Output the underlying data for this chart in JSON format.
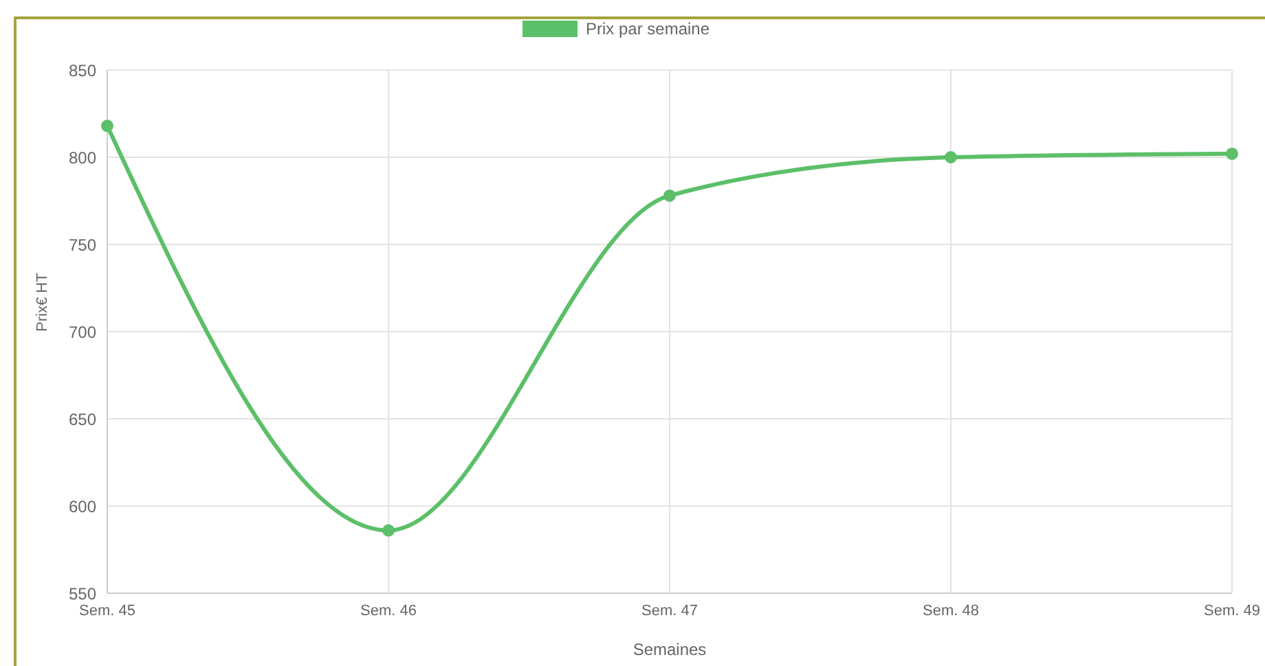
{
  "chart_data": {
    "type": "line",
    "xlabel": "Semaines",
    "ylabel": "Prix€ HT",
    "categories": [
      "Sem. 45",
      "Sem. 46",
      "Sem. 47",
      "Sem. 48",
      "Sem. 49"
    ],
    "series": [
      {
        "name": "Prix par semaine",
        "color": "#5cbf69",
        "values": [
          818,
          586,
          778,
          800,
          802
        ]
      }
    ],
    "ylim": [
      550,
      850
    ],
    "yticks": [
      550,
      600,
      650,
      700,
      750,
      800,
      850
    ],
    "grid": true,
    "legend": "top",
    "marker": "circle"
  }
}
